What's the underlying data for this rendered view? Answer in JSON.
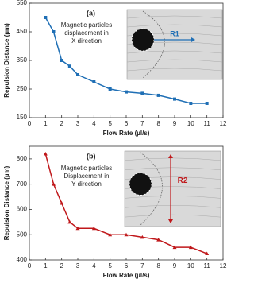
{
  "chart_data": [
    {
      "type": "line",
      "panel_label": "(a)",
      "annotation": [
        "Magnetic particles",
        "displacement in",
        "X direction"
      ],
      "inset_label": "R1",
      "x_label": "Flow Rate (µl/s)",
      "y_label": "Repulsion Distance (µm)",
      "x": [
        1,
        1.5,
        2,
        2.5,
        3,
        4,
        5,
        6,
        7,
        8,
        9,
        10,
        11
      ],
      "values": [
        500,
        450,
        350,
        330,
        300,
        275,
        250,
        240,
        235,
        228,
        215,
        200,
        200
      ],
      "color": "#1f6fb5",
      "marker": "square",
      "xlim": [
        0,
        12
      ],
      "xticks": [
        0,
        1,
        2,
        3,
        4,
        5,
        6,
        7,
        8,
        9,
        10,
        11,
        12
      ],
      "ylim": [
        150,
        550
      ],
      "yticks": [
        150,
        250,
        350,
        450,
        550
      ]
    },
    {
      "type": "line",
      "panel_label": "(b)",
      "annotation": [
        "Magnetic particles",
        "Displacement in",
        "Y direction"
      ],
      "inset_label": "R2",
      "x_label": "Flow Rate (µl/s)",
      "y_label": "Repulsion Distance (µm)",
      "x": [
        1,
        1.5,
        2,
        2.5,
        3,
        4,
        5,
        6,
        7,
        8,
        9,
        10,
        11
      ],
      "values": [
        820,
        700,
        625,
        550,
        525,
        525,
        500,
        500,
        490,
        480,
        450,
        450,
        425
      ],
      "color": "#c0181b",
      "marker": "triangle",
      "xlim": [
        0,
        12
      ],
      "xticks": [
        0,
        1,
        2,
        3,
        4,
        5,
        6,
        7,
        8,
        9,
        10,
        11,
        12
      ],
      "ylim": [
        400,
        850
      ],
      "yticks": [
        400,
        500,
        600,
        700,
        800
      ]
    }
  ]
}
